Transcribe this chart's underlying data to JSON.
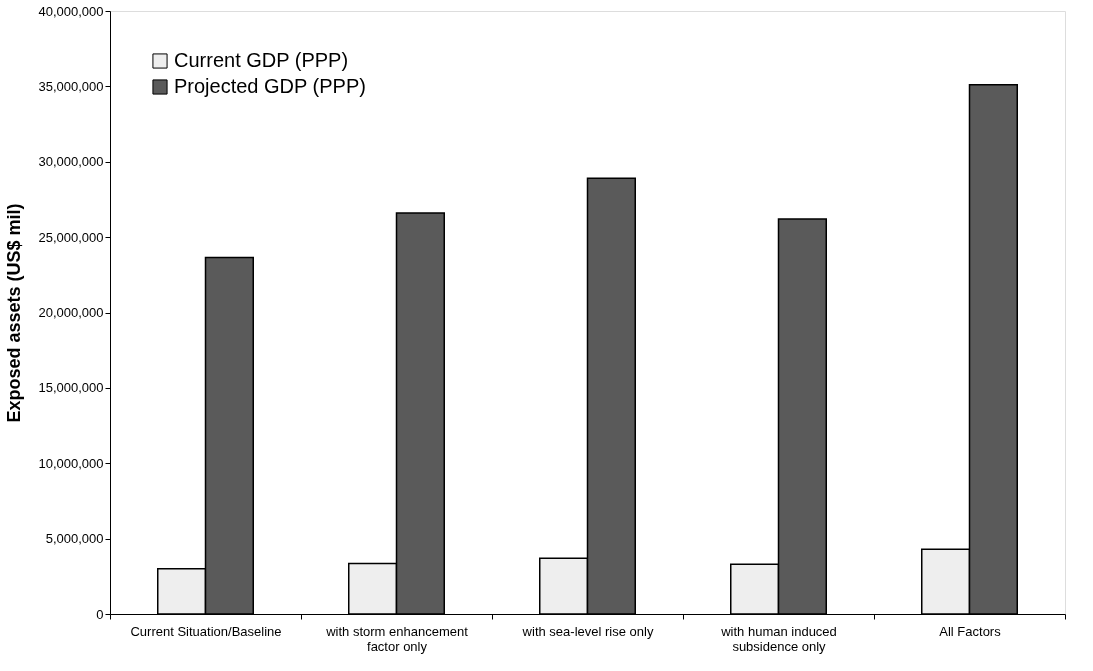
{
  "chart_data": {
    "type": "bar",
    "ylabel": "Exposed assets (US$ mil)",
    "categories": [
      "Current Situation/Baseline",
      "with storm enhancement factor only",
      "with sea-level rise only",
      "with human induced subsidence only",
      "All Factors"
    ],
    "series": [
      {
        "name": "Current GDP (PPP)",
        "color": "#eeeeee",
        "values": [
          3000000,
          3350000,
          3700000,
          3300000,
          4300000
        ]
      },
      {
        "name": "Projected GDP (PPP)",
        "color": "#5a5a5a",
        "values": [
          23650000,
          26600000,
          28900000,
          26200000,
          35100000
        ]
      }
    ],
    "ylim": [
      0,
      40000000
    ],
    "yticks": [
      0,
      {
        "value": 5000000,
        "label": "5,000,000"
      },
      {
        "value": 10000000,
        "label": "10,000,000"
      },
      {
        "value": 15000000,
        "label": "15,000,000"
      },
      {
        "value": 20000000,
        "label": "20,000,000"
      },
      {
        "value": 25000000,
        "label": "25,000,000"
      },
      {
        "value": 30000000,
        "label": "30,000,000"
      },
      {
        "value": 35000000,
        "label": "35,000,000"
      },
      {
        "value": 40000000,
        "label": "40,000,000"
      }
    ],
    "grid": false,
    "legend": "top left"
  }
}
